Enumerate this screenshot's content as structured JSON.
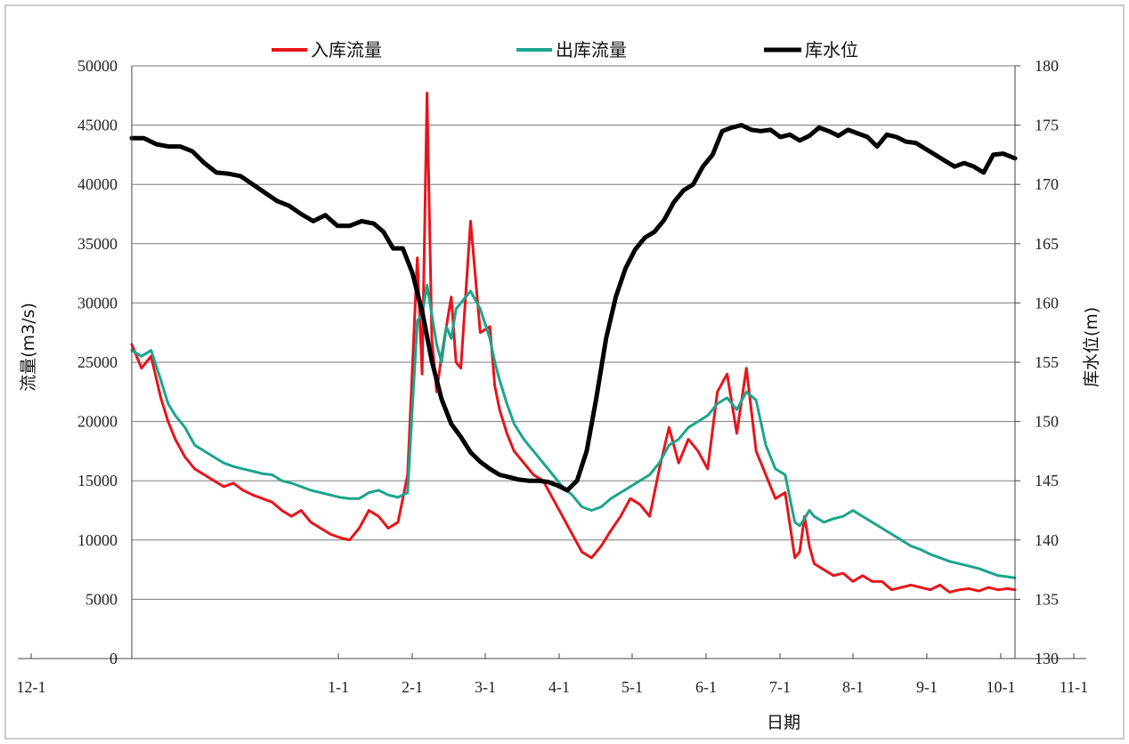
{
  "chart_data": {
    "type": "line",
    "title": "",
    "xlabel": "日期",
    "ylabel_left": "流量(m3/s)",
    "ylabel_right": "库水位(m)",
    "y_left_lim": [
      0,
      50000
    ],
    "y_left_ticks": [
      0,
      5000,
      10000,
      15000,
      20000,
      25000,
      30000,
      35000,
      40000,
      45000,
      50000
    ],
    "y_right_lim": [
      130,
      180
    ],
    "y_right_ticks": [
      130,
      135,
      140,
      145,
      150,
      155,
      160,
      165,
      170,
      175,
      180
    ],
    "x_ticks": [
      "12-1",
      "1-1",
      "2-1",
      "3-1",
      "4-1",
      "5-1",
      "6-1",
      "7-1",
      "8-1",
      "9-1",
      "10-1",
      "11-1"
    ],
    "x_lim": [
      0,
      365
    ],
    "grid": "horizontal",
    "legend_position": "top",
    "series": [
      {
        "name": "入库流量",
        "axis": "left",
        "color": "#e8141b",
        "x": [
          0,
          4,
          8,
          12,
          15,
          18,
          22,
          26,
          30,
          34,
          38,
          42,
          46,
          50,
          54,
          58,
          62,
          66,
          70,
          74,
          78,
          82,
          86,
          90,
          94,
          98,
          102,
          106,
          110,
          114,
          118,
          120,
          122,
          124,
          126,
          128,
          130,
          132,
          134,
          136,
          140,
          144,
          148,
          150,
          152,
          155,
          158,
          162,
          166,
          170,
          174,
          178,
          182,
          186,
          190,
          194,
          198,
          202,
          206,
          210,
          214,
          218,
          222,
          226,
          230,
          234,
          238,
          242,
          246,
          250,
          254,
          258,
          262,
          266,
          270,
          274,
          276,
          278,
          280,
          282,
          286,
          290,
          294,
          298,
          302,
          306,
          310,
          314,
          318,
          322,
          326,
          330,
          334,
          338,
          342,
          346,
          350,
          354,
          358,
          362,
          365
        ],
        "y": [
          26500,
          24500,
          25500,
          22000,
          20000,
          18500,
          17000,
          16000,
          15500,
          15000,
          14500,
          14800,
          14200,
          13800,
          13500,
          13200,
          12500,
          12000,
          12500,
          11500,
          11000,
          10500,
          10200,
          10000,
          11000,
          12500,
          12000,
          11000,
          11500,
          15500,
          33800,
          24000,
          47700,
          27000,
          22500,
          25500,
          28000,
          30500,
          25000,
          24500,
          36900,
          27500,
          28000,
          23000,
          21000,
          19000,
          17500,
          16500,
          15500,
          15000,
          13500,
          12000,
          10500,
          9000,
          8500,
          9500,
          10800,
          12000,
          13500,
          13000,
          12000,
          16000,
          19500,
          16500,
          18500,
          17500,
          16000,
          22500,
          24000,
          19000,
          24500,
          17500,
          15500,
          13500,
          14000,
          8500,
          9000,
          12000,
          9500,
          8000,
          7500,
          7000,
          7200,
          6500,
          7000,
          6500,
          6500,
          5800,
          6000,
          6200,
          6000,
          5800,
          6200,
          5600,
          5800,
          5900,
          5700,
          6000,
          5800,
          5900,
          5800
        ]
      },
      {
        "name": "出库流量",
        "axis": "left",
        "color": "#1aa58c",
        "x": [
          0,
          4,
          8,
          12,
          15,
          18,
          22,
          26,
          30,
          34,
          38,
          42,
          46,
          50,
          54,
          58,
          62,
          66,
          70,
          74,
          78,
          82,
          86,
          90,
          94,
          98,
          102,
          106,
          110,
          114,
          118,
          120,
          122,
          124,
          126,
          128,
          130,
          132,
          134,
          136,
          140,
          144,
          148,
          150,
          152,
          155,
          158,
          162,
          166,
          170,
          174,
          178,
          182,
          186,
          190,
          194,
          198,
          202,
          206,
          210,
          214,
          218,
          222,
          226,
          230,
          234,
          238,
          242,
          246,
          250,
          254,
          258,
          262,
          266,
          270,
          274,
          276,
          278,
          280,
          282,
          286,
          290,
          294,
          298,
          302,
          306,
          310,
          314,
          318,
          322,
          326,
          330,
          334,
          338,
          342,
          346,
          350,
          354,
          358,
          362,
          365
        ],
        "y": [
          26000,
          25500,
          26000,
          23500,
          21500,
          20500,
          19500,
          18000,
          17500,
          17000,
          16500,
          16200,
          16000,
          15800,
          15600,
          15500,
          15000,
          14800,
          14500,
          14200,
          14000,
          13800,
          13600,
          13500,
          13500,
          14000,
          14200,
          13800,
          13600,
          14000,
          28500,
          29000,
          31500,
          29000,
          26500,
          25000,
          28000,
          27000,
          29500,
          30000,
          31000,
          29500,
          27000,
          25000,
          23500,
          21500,
          19800,
          18500,
          17500,
          16500,
          15500,
          14500,
          13800,
          12800,
          12500,
          12800,
          13500,
          14000,
          14500,
          15000,
          15500,
          16500,
          18000,
          18500,
          19500,
          20000,
          20500,
          21500,
          22000,
          21000,
          22500,
          21800,
          18000,
          16000,
          15500,
          11500,
          11200,
          11800,
          12500,
          12000,
          11500,
          11800,
          12000,
          12500,
          12000,
          11500,
          11000,
          10500,
          10000,
          9500,
          9200,
          8800,
          8500,
          8200,
          8000,
          7800,
          7600,
          7300,
          7000,
          6900,
          6800
        ]
      },
      {
        "name": "库水位",
        "axis": "right",
        "color": "#000000",
        "x": [
          0,
          5,
          10,
          15,
          20,
          25,
          30,
          35,
          40,
          45,
          50,
          55,
          60,
          65,
          70,
          75,
          80,
          85,
          90,
          95,
          100,
          104,
          108,
          112,
          116,
          120,
          124,
          128,
          132,
          136,
          140,
          144,
          148,
          152,
          156,
          160,
          164,
          168,
          172,
          176,
          180,
          184,
          188,
          192,
          196,
          200,
          204,
          208,
          212,
          216,
          220,
          224,
          228,
          232,
          236,
          240,
          244,
          248,
          252,
          256,
          260,
          264,
          268,
          272,
          276,
          280,
          284,
          288,
          292,
          296,
          300,
          304,
          308,
          312,
          316,
          320,
          324,
          328,
          332,
          336,
          340,
          344,
          348,
          352,
          356,
          360,
          365
        ],
        "y": [
          173.9,
          173.9,
          173.4,
          173.2,
          173.2,
          172.8,
          171.8,
          171.0,
          170.9,
          170.7,
          170.0,
          169.3,
          168.6,
          168.2,
          167.5,
          166.9,
          167.4,
          166.5,
          166.5,
          166.9,
          166.7,
          166.0,
          164.6,
          164.6,
          162.5,
          159.3,
          155.1,
          151.9,
          149.8,
          148.7,
          147.4,
          146.6,
          146.0,
          145.5,
          145.3,
          145.1,
          145.0,
          145.0,
          144.9,
          144.6,
          144.2,
          145.0,
          147.5,
          152.0,
          157.0,
          160.5,
          162.9,
          164.5,
          165.5,
          166.0,
          167.0,
          168.5,
          169.5,
          170.0,
          171.5,
          172.5,
          174.5,
          174.8,
          175.0,
          174.6,
          174.5,
          174.6,
          174.0,
          174.2,
          173.7,
          174.1,
          174.8,
          174.5,
          174.1,
          174.6,
          174.3,
          174.0,
          173.2,
          174.2,
          174.0,
          173.6,
          173.5,
          173.0,
          172.5,
          172.0,
          171.5,
          171.8,
          171.5,
          171.0,
          172.5,
          172.6,
          172.2
        ]
      }
    ]
  }
}
